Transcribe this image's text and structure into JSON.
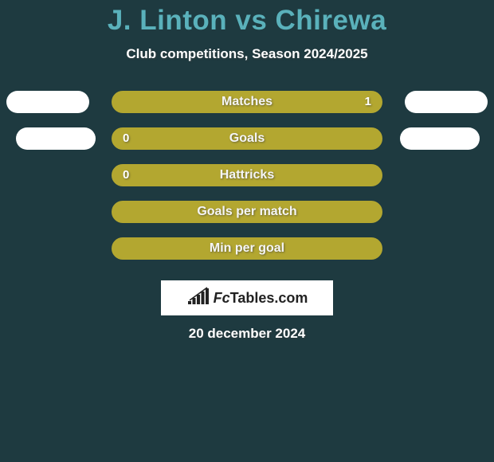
{
  "background_color": "#1e3a40",
  "player1": "J. Linton",
  "player2": "Chirewa",
  "vs": "vs",
  "title_color": "#5ab1bb",
  "subtitle": "Club competitions, Season 2024/2025",
  "outer_pill_color": "#ffffff",
  "bar_fill_color": "#b3a730",
  "bar_border_color": "#b3a730",
  "bar_border_width": 2,
  "label_color": "#f5f5f5",
  "value_color": "#ffffff",
  "rows": [
    {
      "label": "Matches",
      "left": "",
      "right": "1",
      "left_pct": 0,
      "right_pct": 100,
      "has_outer": true,
      "outer_small": false
    },
    {
      "label": "Goals",
      "left": "0",
      "right": "",
      "left_pct": 100,
      "right_pct": 0,
      "has_outer": true,
      "outer_small": true
    },
    {
      "label": "Hattricks",
      "left": "0",
      "right": "",
      "left_pct": 100,
      "right_pct": 0,
      "has_outer": false
    },
    {
      "label": "Goals per match",
      "left": "",
      "right": "",
      "left_pct": 100,
      "right_pct": 0,
      "has_outer": false
    },
    {
      "label": "Min per goal",
      "left": "",
      "right": "",
      "left_pct": 100,
      "right_pct": 0,
      "has_outer": false
    }
  ],
  "logo": {
    "text_left": "Fc",
    "text_right": "Tables.com",
    "box_bg": "#ffffff",
    "text_color": "#222222",
    "bars": [
      4,
      8,
      12,
      16,
      20
    ],
    "bar_color": "#222222",
    "line_color": "#222222"
  },
  "date": "20 december 2024"
}
